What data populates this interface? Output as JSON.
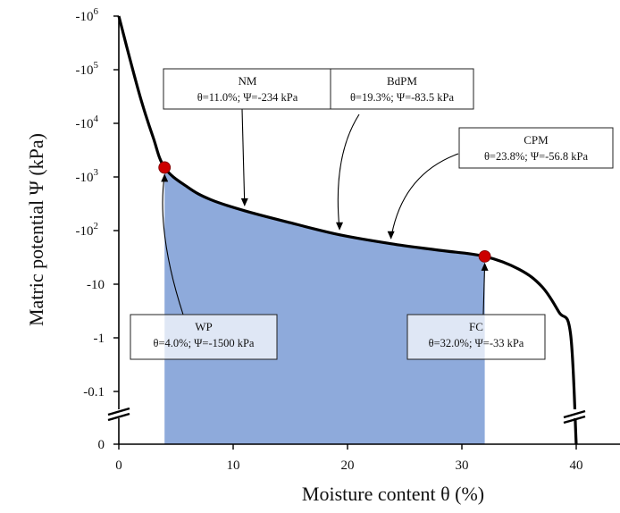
{
  "chart_data": {
    "type": "area",
    "title": "",
    "xlabel": "Moisture content θ (%)",
    "ylabel": "Matric potential Ψ (kPa)",
    "xlim": [
      0,
      43
    ],
    "x_ticks": [
      0,
      10,
      20,
      30,
      40
    ],
    "y_ticks": [
      {
        "base": "-10",
        "exp": "6",
        "value": -1000000
      },
      {
        "base": "-10",
        "exp": "5",
        "value": -100000
      },
      {
        "base": "-10",
        "exp": "4",
        "value": -10000
      },
      {
        "base": "-10",
        "exp": "3",
        "value": -1000
      },
      {
        "base": "-10",
        "exp": "2",
        "value": -100
      },
      {
        "base": "-10",
        "exp": "",
        "value": -10
      },
      {
        "base": "-1",
        "exp": "",
        "value": -1
      },
      {
        "base": "-0.1",
        "exp": "",
        "value": -0.1
      },
      {
        "base": "0",
        "exp": "",
        "value": 0
      }
    ],
    "y_scale": "symlog (reversed, axis break between -0.1 and 0)",
    "grid": false,
    "series": [
      {
        "name": "",
        "color": "#000000",
        "points": [
          {
            "x": 0,
            "y": -1000000
          },
          {
            "x": 1,
            "y": -150000
          },
          {
            "x": 2,
            "y": -25000
          },
          {
            "x": 3,
            "y": -5500
          },
          {
            "x": 4,
            "y": -1500
          },
          {
            "x": 6,
            "y": -650
          },
          {
            "x": 8,
            "y": -380
          },
          {
            "x": 11,
            "y": -234
          },
          {
            "x": 15,
            "y": -140
          },
          {
            "x": 19.3,
            "y": -83.5
          },
          {
            "x": 23.8,
            "y": -56.8
          },
          {
            "x": 28,
            "y": -43
          },
          {
            "x": 32,
            "y": -33
          },
          {
            "x": 35,
            "y": -19
          },
          {
            "x": 37,
            "y": -9
          },
          {
            "x": 38.5,
            "y": -3
          },
          {
            "x": 39.5,
            "y": -1.2
          },
          {
            "x": 40,
            "y": 0
          }
        ]
      }
    ],
    "shaded_region": {
      "x_from": 4,
      "x_to": 32,
      "color": "#8eaadb"
    },
    "marked_points": [
      {
        "name": "WP",
        "x": 4,
        "y": -1500,
        "color": "#cc0000"
      },
      {
        "name": "FC",
        "x": 32,
        "y": -33,
        "color": "#cc0000"
      }
    ],
    "annotations": [
      {
        "name": "NM",
        "value": "θ=11.0%; Ψ=-234 kPa",
        "x": 11,
        "y": -234
      },
      {
        "name": "BdPM",
        "value": "θ=19.3%; Ψ=-83.5 kPa",
        "x": 19.3,
        "y": -83.5
      },
      {
        "name": "CPM",
        "value": "θ=23.8%; Ψ=-56.8 kPa",
        "x": 23.8,
        "y": -56.8
      },
      {
        "name": "WP",
        "value": "θ=4.0%; Ψ=-1500 kPa",
        "x": 4,
        "y": -1500
      },
      {
        "name": "FC",
        "value": "θ=32.0%; Ψ=-33 kPa",
        "x": 32,
        "y": -33
      }
    ]
  }
}
